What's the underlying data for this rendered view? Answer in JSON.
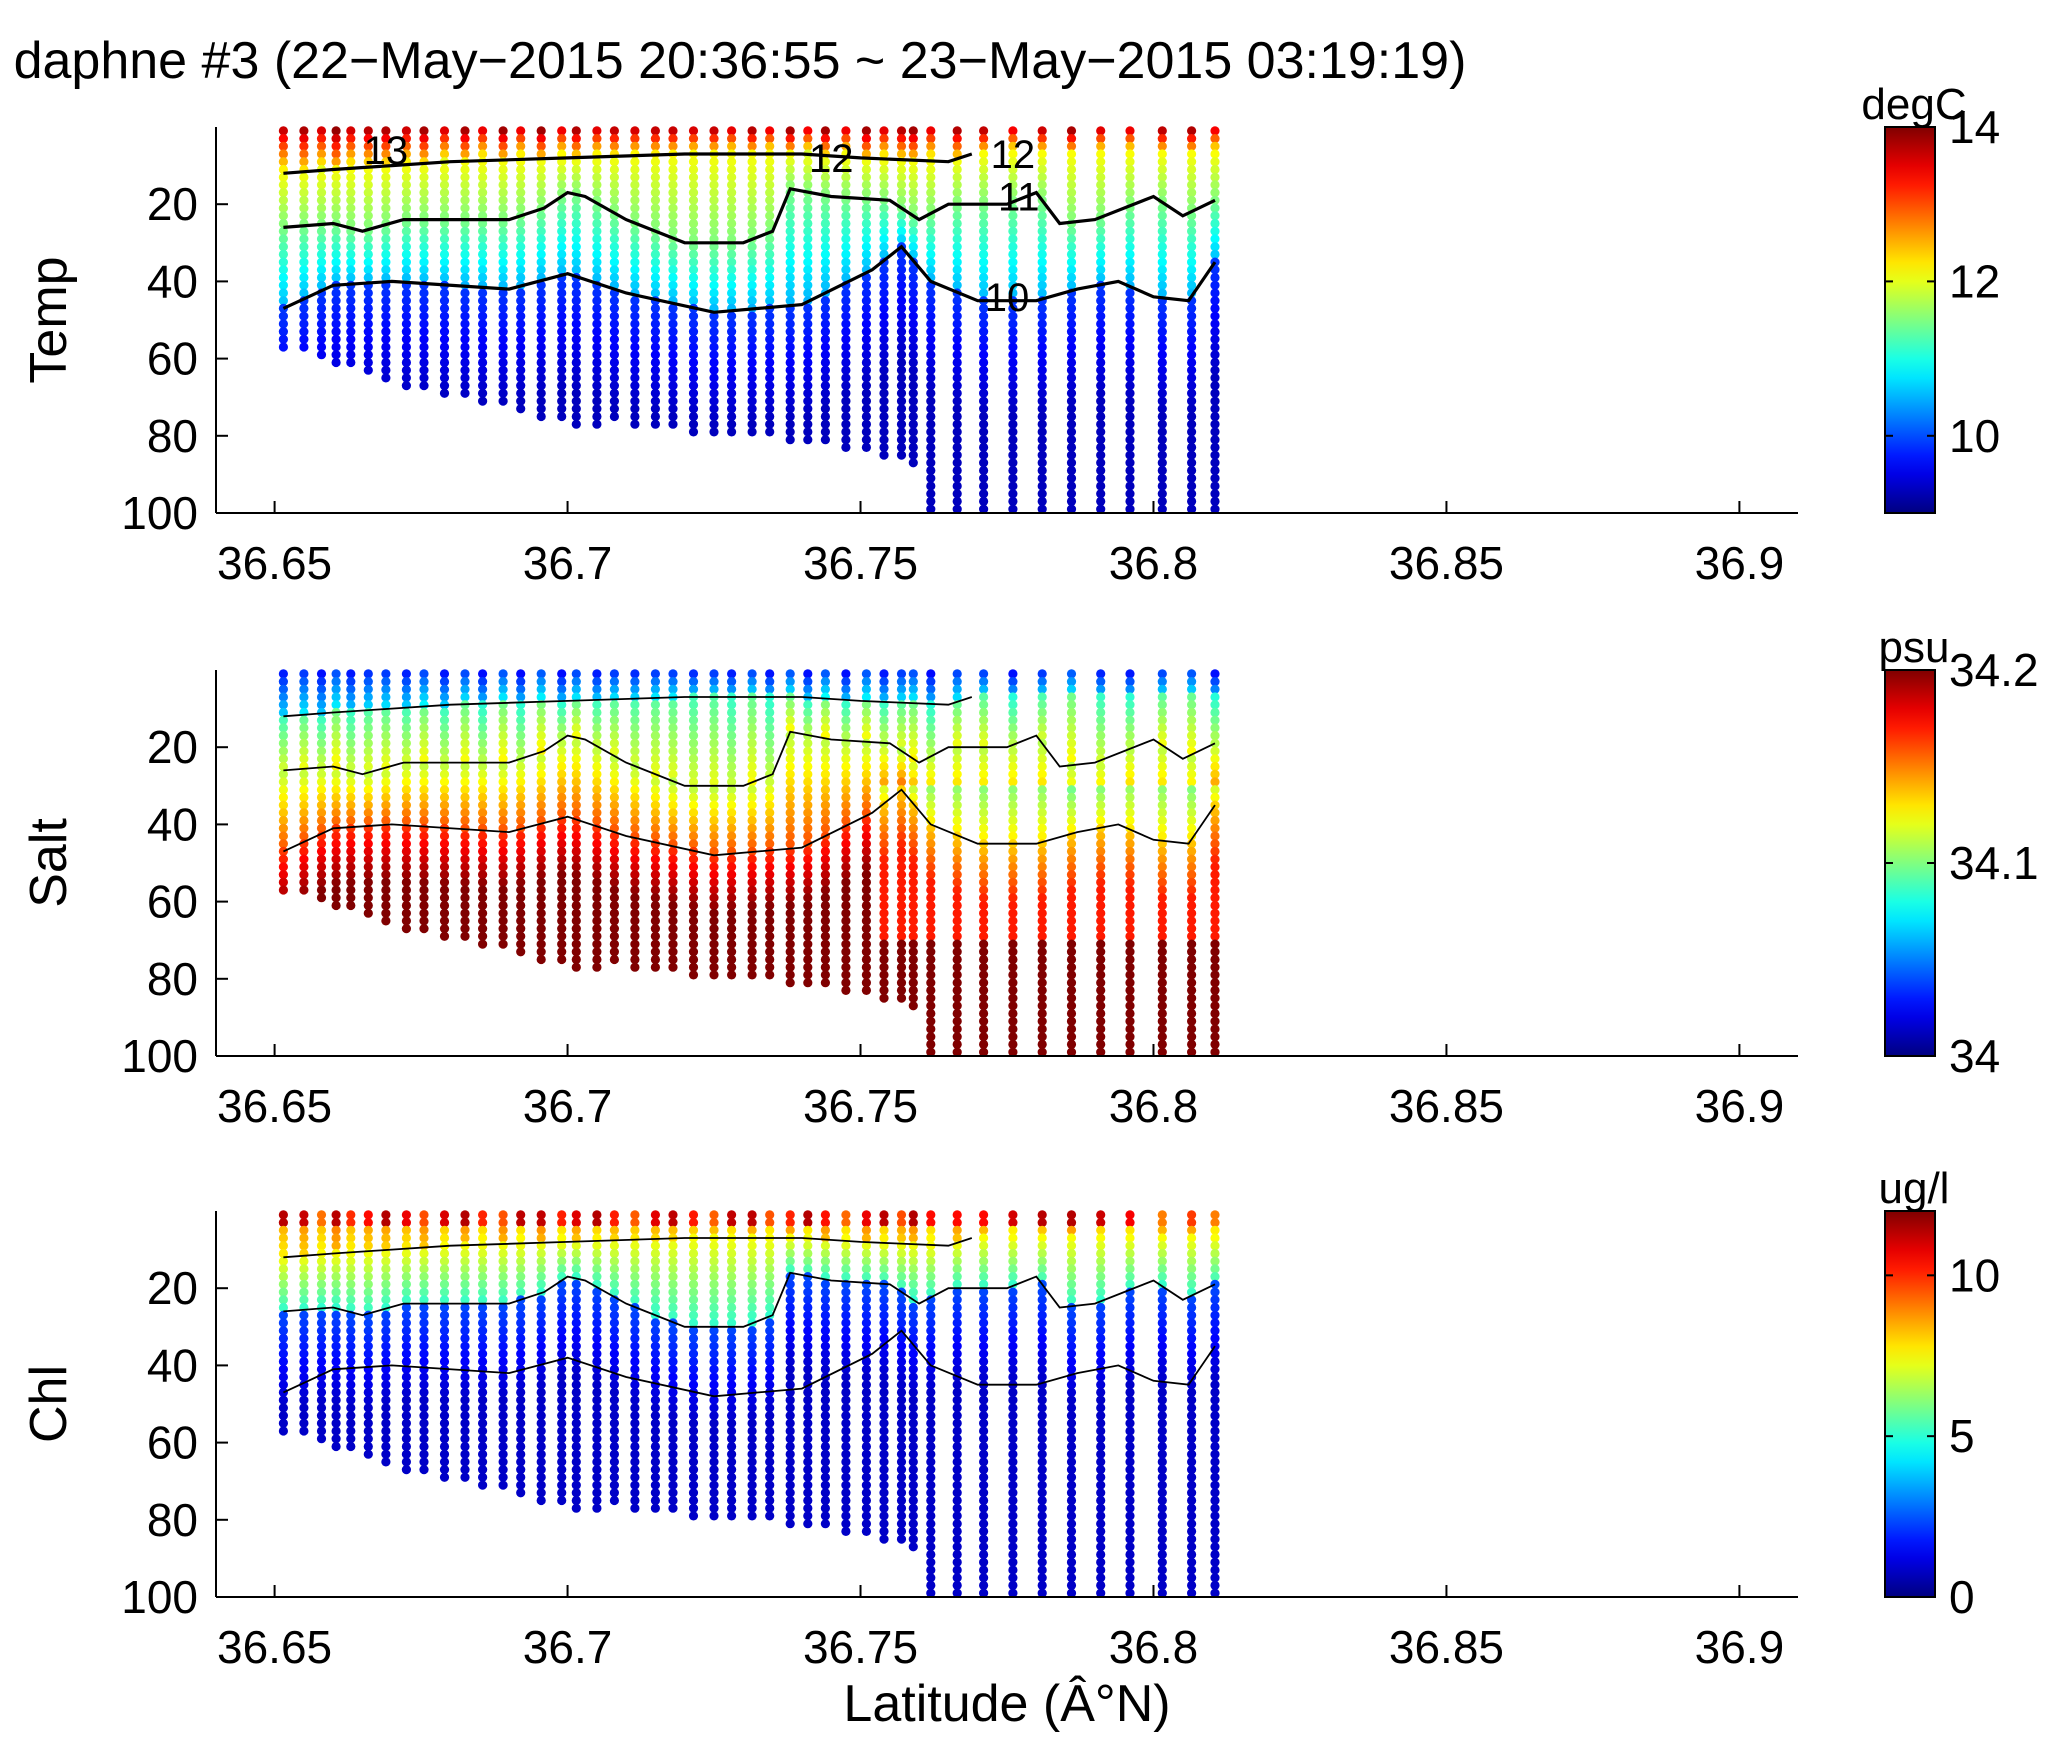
{
  "title": "daphne #3 (22−May−2015 20:36:55 ~ 23−May−2015 03:19:19)",
  "chart_data": [
    {
      "type": "scatter",
      "variable": "Temp",
      "ylabel": "Temp",
      "units": "degC",
      "colorbar_range": [
        9,
        14
      ],
      "colorbar_ticks": [
        10,
        12,
        14
      ],
      "xlabel": "",
      "xlim": [
        36.64,
        36.91
      ],
      "x_ticks": [
        "36.65",
        "36.7",
        "36.75",
        "36.8",
        "36.85",
        "36.9"
      ],
      "ylim": [
        100,
        0
      ],
      "y_ticks": [
        20,
        40,
        60,
        80,
        100
      ],
      "colormap": "jet",
      "contour_labels": [
        {
          "text": "13",
          "x": 36.669,
          "y": 6
        },
        {
          "text": "12",
          "x": 36.745,
          "y": 8
        },
        {
          "text": "12",
          "x": 36.776,
          "y": 7
        },
        {
          "text": "11",
          "x": 36.777,
          "y": 18
        },
        {
          "text": "10",
          "x": 36.775,
          "y": 44
        }
      ]
    },
    {
      "type": "scatter",
      "variable": "Salt",
      "ylabel": "Salt",
      "units": "psu",
      "colorbar_range": [
        34.0,
        34.2
      ],
      "colorbar_ticks": [
        "34",
        "34.1",
        "34.2"
      ],
      "xlabel": "",
      "xlim": [
        36.64,
        36.91
      ],
      "x_ticks": [
        "36.65",
        "36.7",
        "36.75",
        "36.8",
        "36.85",
        "36.9"
      ],
      "ylim": [
        100,
        0
      ],
      "y_ticks": [
        20,
        40,
        60,
        80,
        100
      ],
      "colormap": "jet"
    },
    {
      "type": "scatter",
      "variable": "Chl",
      "ylabel": "Chl",
      "units": "ug/l",
      "colorbar_range": [
        0,
        12
      ],
      "colorbar_ticks": [
        0,
        5,
        10
      ],
      "xlabel": "Latitude (Â°N)",
      "xlim": [
        36.64,
        36.91
      ],
      "x_ticks": [
        "36.65",
        "36.7",
        "36.75",
        "36.8",
        "36.85",
        "36.9"
      ],
      "ylim": [
        100,
        0
      ],
      "y_ticks": [
        20,
        40,
        60,
        80,
        100
      ],
      "colormap": "jet"
    }
  ],
  "profiles": {
    "x": [
      36.6515,
      36.655,
      36.658,
      36.6605,
      36.663,
      36.666,
      36.669,
      36.6725,
      36.6755,
      36.679,
      36.6825,
      36.6855,
      36.689,
      36.692,
      36.6955,
      36.699,
      36.7015,
      36.705,
      36.708,
      36.7115,
      36.715,
      36.718,
      36.7215,
      36.725,
      36.728,
      36.7315,
      36.7345,
      36.738,
      36.741,
      36.744,
      36.7475,
      36.751,
      36.754,
      36.757,
      36.759,
      36.762,
      36.7665,
      36.771,
      36.776,
      36.781,
      36.786,
      36.791,
      36.796,
      36.8015,
      36.8065,
      36.8105
    ],
    "max_depth": [
      57,
      58,
      59,
      61,
      62,
      64,
      66,
      67,
      68,
      69,
      70,
      71,
      72,
      74,
      75,
      76,
      77,
      77,
      76,
      77,
      78,
      78,
      79,
      79,
      80,
      80,
      80,
      81,
      81,
      82,
      83,
      84,
      85,
      86,
      87,
      100,
      100,
      100,
      100,
      100,
      100,
      100,
      100,
      100,
      100,
      100
    ],
    "contours": [
      {
        "points": [
          [
            36.6515,
            12
          ],
          [
            36.66,
            11
          ],
          [
            36.67,
            10
          ],
          [
            36.68,
            9
          ],
          [
            36.7,
            8
          ],
          [
            36.72,
            7
          ],
          [
            36.74,
            7
          ],
          [
            36.75,
            8
          ],
          [
            36.765,
            9
          ],
          [
            36.769,
            7
          ]
        ]
      },
      {
        "points": [
          [
            36.6515,
            26
          ],
          [
            36.66,
            25
          ],
          [
            36.665,
            27
          ],
          [
            36.672,
            24
          ],
          [
            36.69,
            24
          ],
          [
            36.696,
            21
          ],
          [
            36.7,
            17
          ],
          [
            36.703,
            18
          ],
          [
            36.71,
            24
          ],
          [
            36.72,
            30
          ],
          [
            36.73,
            30
          ],
          [
            36.735,
            27
          ],
          [
            36.738,
            16
          ],
          [
            36.745,
            18
          ],
          [
            36.755,
            19
          ],
          [
            36.76,
            24
          ],
          [
            36.765,
            20
          ],
          [
            36.775,
            20
          ],
          [
            36.78,
            17
          ],
          [
            36.784,
            25
          ],
          [
            36.79,
            24
          ],
          [
            36.8,
            18
          ],
          [
            36.805,
            23
          ],
          [
            36.8105,
            19
          ]
        ]
      },
      {
        "points": [
          [
            36.6515,
            47
          ],
          [
            36.66,
            41
          ],
          [
            36.67,
            40
          ],
          [
            36.69,
            42
          ],
          [
            36.7,
            38
          ],
          [
            36.71,
            43
          ],
          [
            36.725,
            48
          ],
          [
            36.74,
            46
          ],
          [
            36.752,
            37
          ],
          [
            36.757,
            31
          ],
          [
            36.762,
            40
          ],
          [
            36.77,
            45
          ],
          [
            36.78,
            45
          ],
          [
            36.787,
            42
          ],
          [
            36.794,
            40
          ],
          [
            36.8,
            44
          ],
          [
            36.806,
            45
          ],
          [
            36.8105,
            35
          ]
        ]
      }
    ]
  }
}
